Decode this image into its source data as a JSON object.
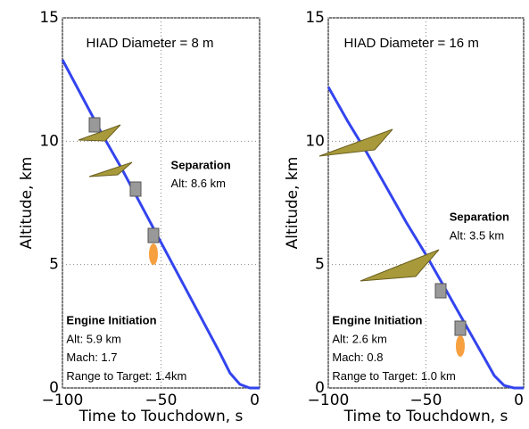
{
  "chart_data": [
    {
      "type": "line",
      "xlabel": "Time to Touchdown, s",
      "ylabel": "Altitude, km",
      "x": [
        -100,
        -90,
        -80,
        -70,
        -60,
        -50,
        -40,
        -30,
        -20,
        -15,
        -10,
        -5,
        0
      ],
      "values": [
        13.3,
        11.8,
        10.3,
        8.9,
        7.4,
        5.9,
        4.4,
        2.9,
        1.4,
        0.6,
        0.15,
        0,
        0
      ],
      "color": "#3344ee",
      "xlim": [
        -100,
        0
      ],
      "ylim": [
        0,
        15
      ],
      "xticks": [
        {
          "value": -100,
          "label": "−100"
        },
        {
          "value": -50,
          "label": "−50"
        },
        0
      ],
      "yticks": [
        0,
        5,
        10,
        15
      ],
      "grid": true,
      "annotations": [
        "HIAD Diameter = 8 m",
        "Separation",
        "Alt: 8.6 km",
        "Engine Initiation",
        "Alt: 5.9 km",
        "Mach:  1.7",
        "Range to Target: 1.4km"
      ]
    },
    {
      "type": "line",
      "xlabel": "Time to Touchdown, s",
      "ylabel": "Altitude, km",
      "x": [
        -100,
        -90,
        -80,
        -70,
        -60,
        -50,
        -40,
        -30,
        -20,
        -15,
        -10,
        -5,
        0
      ],
      "values": [
        12.2,
        10.8,
        9.5,
        8.1,
        6.7,
        5.4,
        4.0,
        2.6,
        1.2,
        0.5,
        0.1,
        0,
        0
      ],
      "color": "#3344ee",
      "xlim": [
        -100,
        0
      ],
      "ylim": [
        0,
        15
      ],
      "xticks": [
        {
          "value": -100,
          "label": "−100"
        },
        {
          "value": -50,
          "label": "−50"
        },
        0
      ],
      "yticks": [
        0,
        5,
        10,
        15
      ],
      "grid": true,
      "annotations": [
        "HIAD Diameter = 16 m",
        "Separation",
        "Alt: 3.5 km",
        "Engine Initiation",
        "Alt: 2.6 km",
        "Mach: 0.8",
        "Range to Target: 1.0 km"
      ]
    }
  ]
}
